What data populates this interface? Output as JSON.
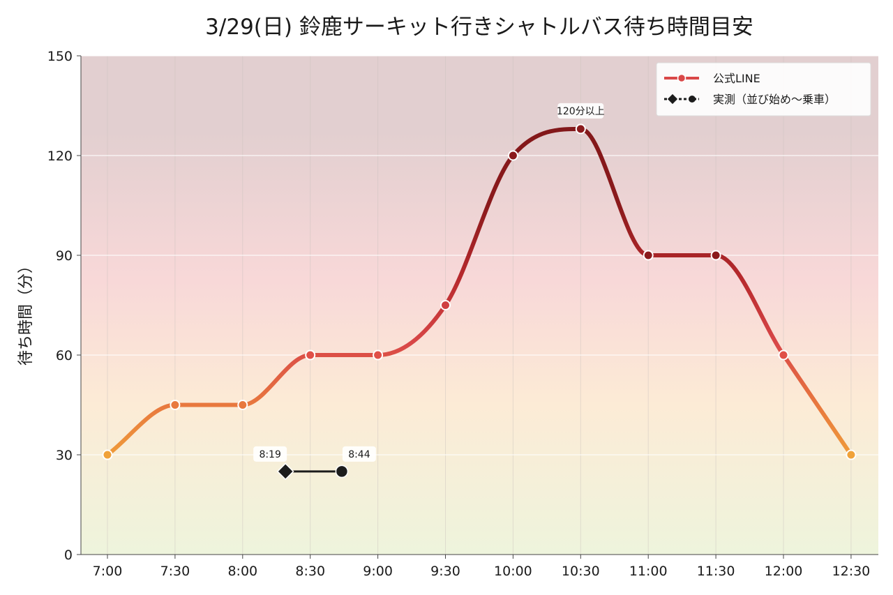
{
  "chart_data": {
    "type": "line",
    "title": "3/29(日) 鈴鹿サーキット行きシャトルバス待ち時間目安",
    "xlabel": "",
    "ylabel": "待ち時間（分）",
    "x_ticks": [
      "7:00",
      "7:30",
      "8:00",
      "8:30",
      "9:00",
      "9:30",
      "10:00",
      "10:30",
      "11:00",
      "11:30",
      "12:00",
      "12:30"
    ],
    "ylim": [
      0,
      150
    ],
    "y_ticks": [
      0,
      30,
      60,
      90,
      120,
      150
    ],
    "grid": true,
    "legend_position": "top-right",
    "series": [
      {
        "name": "公式LINE",
        "style": "solid-line-circle-markers",
        "color_scale": [
          "#f0a23a",
          "#e86a3c",
          "#d94444",
          "#8b1a1c"
        ],
        "x": [
          "7:00",
          "7:30",
          "8:00",
          "8:30",
          "9:00",
          "9:30",
          "10:00",
          "10:30",
          "11:00",
          "11:30",
          "12:00",
          "12:30"
        ],
        "values": [
          30,
          45,
          45,
          60,
          60,
          75,
          120,
          128,
          90,
          90,
          60,
          30
        ]
      },
      {
        "name": "実測（並び始め〜乗車）",
        "style": "diamond-start-circle-end",
        "color": "#1c1c1c",
        "x": [
          "8:19",
          "8:44"
        ],
        "values": [
          25,
          25
        ]
      }
    ],
    "annotations": [
      {
        "text": "120分以上",
        "x": "10:30",
        "y": 128
      },
      {
        "text": "8:19",
        "x": "8:19",
        "y": 25
      },
      {
        "text": "8:44",
        "x": "8:44",
        "y": 25
      }
    ],
    "background_bands": [
      "#eef4dc",
      "#fcebd6",
      "#f8d8d8",
      "#e2cfd0"
    ]
  }
}
